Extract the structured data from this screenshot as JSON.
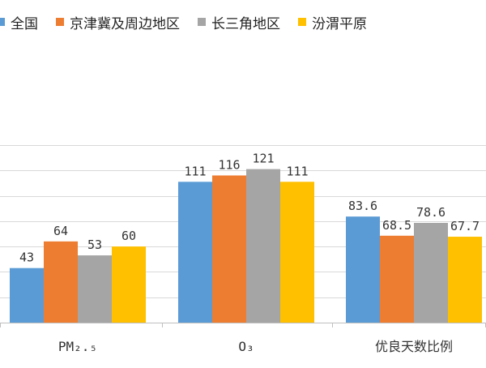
{
  "chart_data": {
    "type": "bar",
    "categories": [
      "PM₂.₅",
      "O₃",
      "优良天数比例"
    ],
    "series": [
      {
        "name": "全国",
        "color": "#5B9BD5",
        "values": [
          43,
          111,
          83.6
        ]
      },
      {
        "name": "京津冀及周边地区",
        "color": "#ED7D31",
        "values": [
          64,
          116,
          68.5
        ]
      },
      {
        "name": "长三角地区",
        "color": "#A5A5A5",
        "values": [
          53,
          121,
          78.6
        ]
      },
      {
        "name": "汾渭平原",
        "color": "#FFC000",
        "values": [
          60,
          111,
          67.7
        ]
      }
    ],
    "data_labels": [
      [
        "43",
        "64",
        "53",
        "60"
      ],
      [
        "111",
        "116",
        "121",
        "111"
      ],
      [
        "83.6",
        "68.5",
        "78.6",
        "67.7"
      ]
    ],
    "ylim": [
      0,
      160
    ],
    "y_gridlines": [
      20,
      40,
      60,
      80,
      100,
      120,
      140
    ],
    "grid": true,
    "legend_position": "top-left"
  }
}
